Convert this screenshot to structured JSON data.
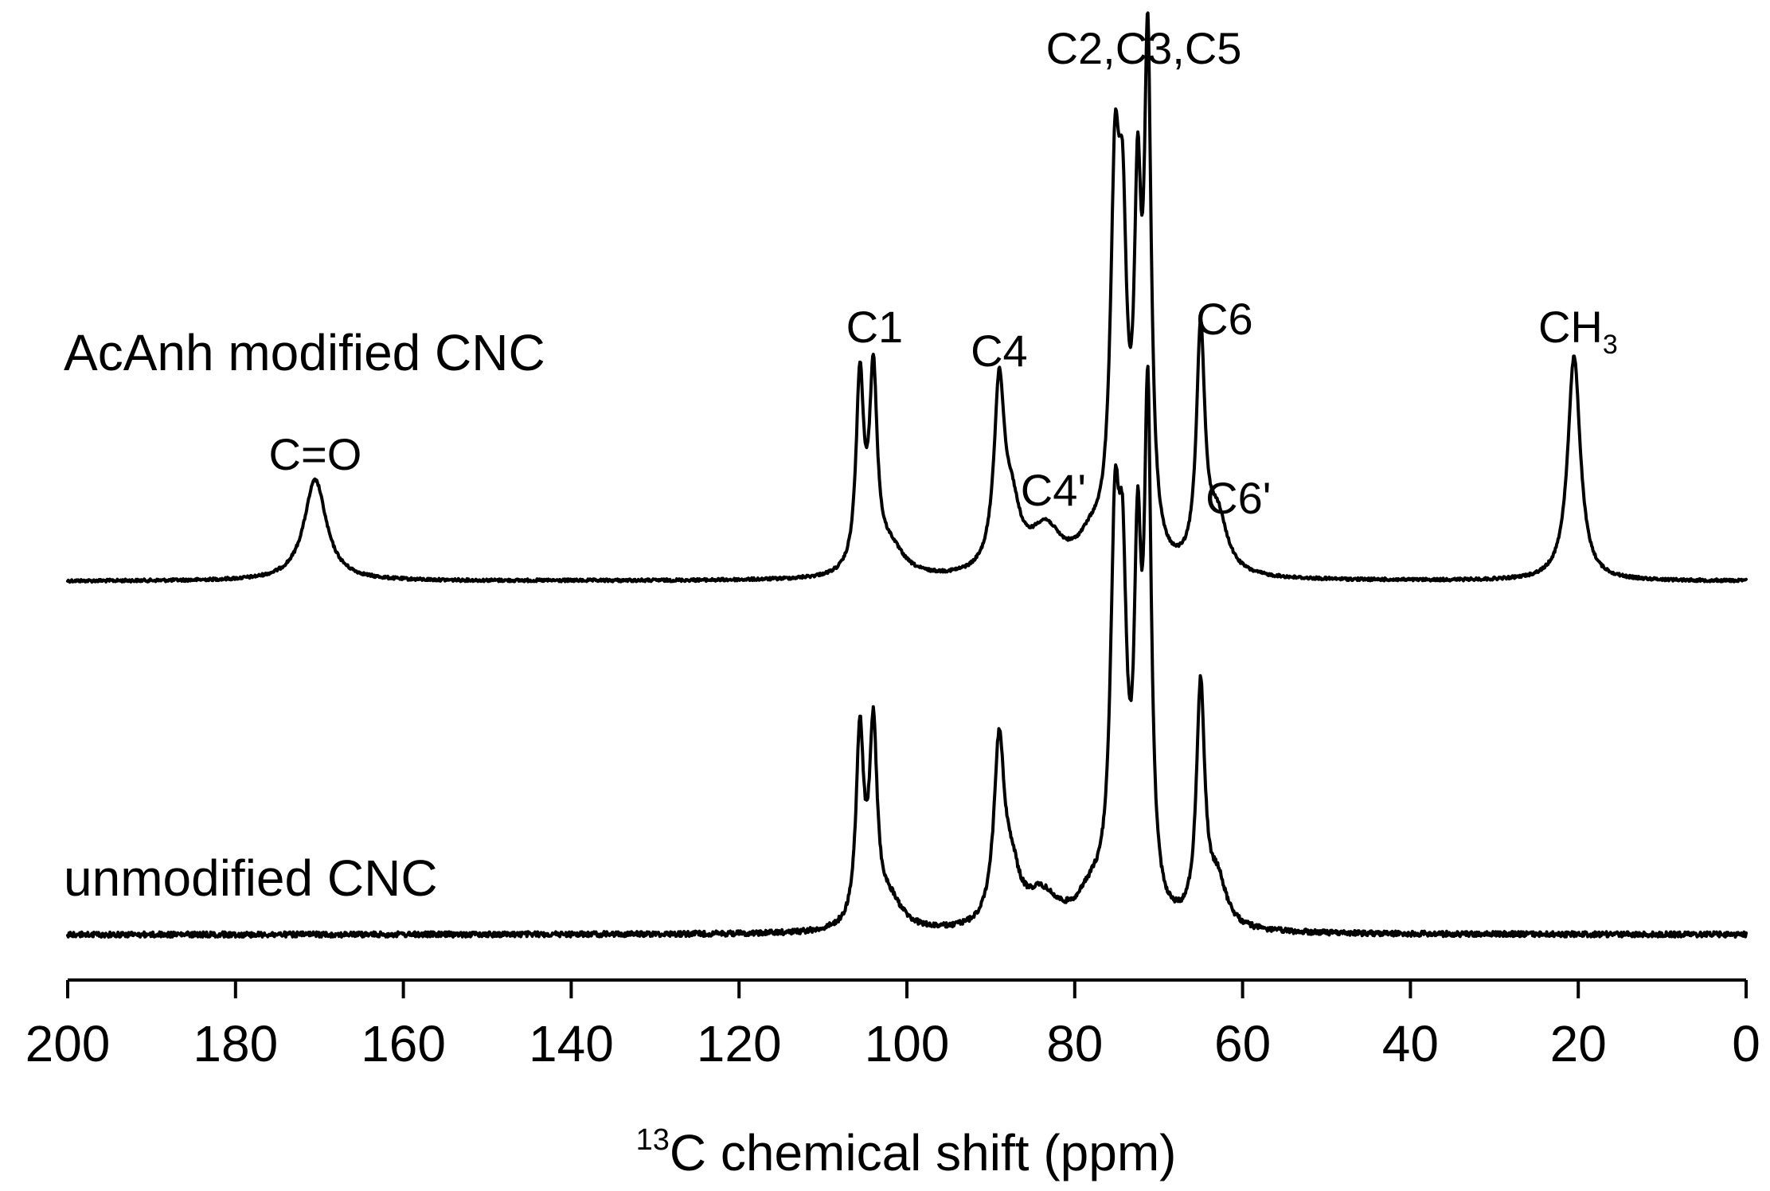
{
  "chart_data": {
    "type": "line",
    "title": "",
    "xlabel_sup": "13",
    "xlabel": "C chemical shift (ppm)",
    "ylabel": "",
    "xlim": [
      200,
      0
    ],
    "x_reversed": true,
    "x_ticks": [
      "200",
      "180",
      "160",
      "140",
      "120",
      "100",
      "80",
      "60",
      "40",
      "20",
      "0"
    ],
    "grid": false,
    "series": [
      {
        "name": "AcAnh modified CNC",
        "peaks": [
          {
            "center": 170.5,
            "height": 0.18,
            "width": 1.6
          },
          {
            "center": 105.6,
            "height": 0.34,
            "width": 0.55
          },
          {
            "center": 104.0,
            "height": 0.34,
            "width": 0.55
          },
          {
            "center": 102.0,
            "height": 0.05,
            "width": 2.0
          },
          {
            "center": 89.0,
            "height": 0.32,
            "width": 0.75
          },
          {
            "center": 87.5,
            "height": 0.1,
            "width": 1.2
          },
          {
            "center": 83.5,
            "height": 0.08,
            "width": 2.3
          },
          {
            "center": 78.0,
            "height": 0.05,
            "width": 2.0
          },
          {
            "center": 75.2,
            "height": 0.62,
            "width": 0.65
          },
          {
            "center": 74.3,
            "height": 0.48,
            "width": 0.6
          },
          {
            "center": 72.5,
            "height": 0.57,
            "width": 0.5
          },
          {
            "center": 71.3,
            "height": 0.88,
            "width": 0.5
          },
          {
            "center": 65.0,
            "height": 0.42,
            "width": 0.6
          },
          {
            "center": 63.0,
            "height": 0.1,
            "width": 1.4
          },
          {
            "center": 20.5,
            "height": 0.4,
            "width": 0.9
          }
        ]
      },
      {
        "name": "unmodified CNC",
        "peaks": [
          {
            "center": 105.6,
            "height": 0.34,
            "width": 0.55
          },
          {
            "center": 104.0,
            "height": 0.34,
            "width": 0.55
          },
          {
            "center": 102.0,
            "height": 0.05,
            "width": 1.8
          },
          {
            "center": 89.0,
            "height": 0.32,
            "width": 0.75
          },
          {
            "center": 87.5,
            "height": 0.08,
            "width": 1.1
          },
          {
            "center": 84.0,
            "height": 0.06,
            "width": 2.4
          },
          {
            "center": 78.0,
            "height": 0.05,
            "width": 2.0
          },
          {
            "center": 75.2,
            "height": 0.62,
            "width": 0.65
          },
          {
            "center": 74.3,
            "height": 0.48,
            "width": 0.6
          },
          {
            "center": 72.5,
            "height": 0.57,
            "width": 0.5
          },
          {
            "center": 71.3,
            "height": 0.88,
            "width": 0.5
          },
          {
            "center": 65.0,
            "height": 0.42,
            "width": 0.6
          },
          {
            "center": 63.0,
            "height": 0.08,
            "width": 1.3
          }
        ]
      }
    ],
    "annotations": [
      {
        "id": "c-o",
        "text": "C=O",
        "sub": "",
        "ppm": 170.5,
        "series": 0
      },
      {
        "id": "c1",
        "text": "C1",
        "sub": "",
        "ppm": 104.8,
        "series": 0
      },
      {
        "id": "c4",
        "text": "C4",
        "sub": "",
        "ppm": 89.0,
        "series": 0
      },
      {
        "id": "c4p",
        "text": "C4'",
        "sub": "",
        "ppm": 83.5,
        "series": 0
      },
      {
        "id": "c235",
        "text": "C2,C3,C5",
        "sub": "",
        "ppm": 71.3,
        "series": 0
      },
      {
        "id": "c6",
        "text": "C6",
        "sub": "",
        "ppm": 65.0,
        "series": 0
      },
      {
        "id": "c6p",
        "text": "C6'",
        "sub": "",
        "ppm": 60.5,
        "series": 0
      },
      {
        "id": "ch3",
        "text": "CH",
        "sub": "3",
        "ppm": 20.5,
        "series": 0
      }
    ]
  }
}
